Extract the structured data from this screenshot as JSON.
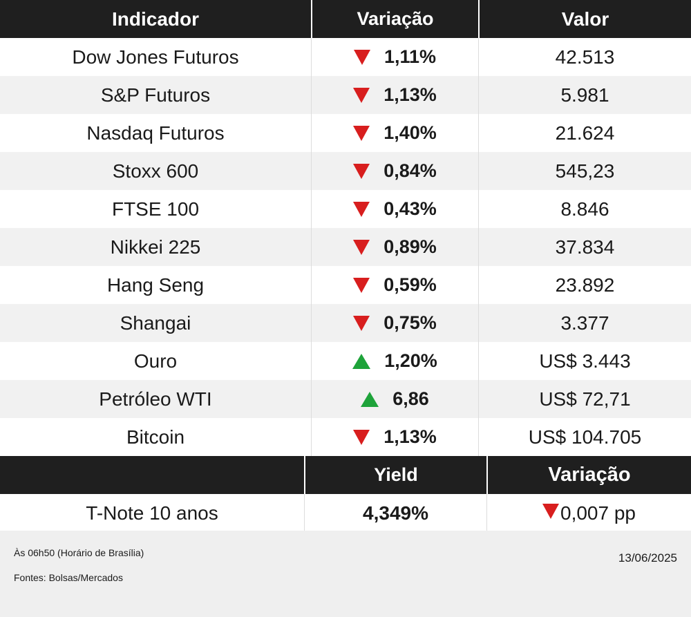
{
  "header": {
    "col1": "Indicador",
    "col2": "Variação",
    "col3": "Valor"
  },
  "rows": [
    {
      "name": "Dow Jones Futuros",
      "dir": "down",
      "change": "1,11%",
      "value": "42.513"
    },
    {
      "name": "S&P Futuros",
      "dir": "down",
      "change": "1,13%",
      "value": "5.981"
    },
    {
      "name": "Nasdaq Futuros",
      "dir": "down",
      "change": "1,40%",
      "value": "21.624"
    },
    {
      "name": "Stoxx 600",
      "dir": "down",
      "change": "0,84%",
      "value": "545,23"
    },
    {
      "name": "FTSE 100",
      "dir": "down",
      "change": "0,43%",
      "value": "8.846"
    },
    {
      "name": "Nikkei 225",
      "dir": "down",
      "change": "0,89%",
      "value": "37.834"
    },
    {
      "name": "Hang Seng",
      "dir": "down",
      "change": "0,59%",
      "value": "23.892"
    },
    {
      "name": "Shangai",
      "dir": "down",
      "change": "0,75%",
      "value": "3.377"
    },
    {
      "name": "Ouro",
      "dir": "up",
      "change": "1,20%",
      "value": "US$ 3.443"
    },
    {
      "name": "Petróleo WTI",
      "dir": "up",
      "change": "6,86",
      "value": "US$ 72,71"
    },
    {
      "name": "Bitcoin",
      "dir": "down",
      "change": "1,13%",
      "value": "US$ 104.705"
    }
  ],
  "header2": {
    "col1": "",
    "col2": "Yield",
    "col3": "Variação"
  },
  "tnote": {
    "name": "T-Note 10 anos",
    "yield": "4,349%",
    "dir": "down",
    "change": "0,007 pp"
  },
  "footer": {
    "time_note": "Às 06h50 (Horário de Brasília)",
    "sources": "Fontes: Bolsas/Mercados",
    "date": "13/06/2025"
  },
  "colors": {
    "header_bg": "#1f1f1f",
    "down": "#d81e1e",
    "up": "#1ea33a",
    "alt_row": "#f1f1f1"
  },
  "icons": {
    "down": "triangle-down-icon",
    "up": "triangle-up-icon"
  }
}
